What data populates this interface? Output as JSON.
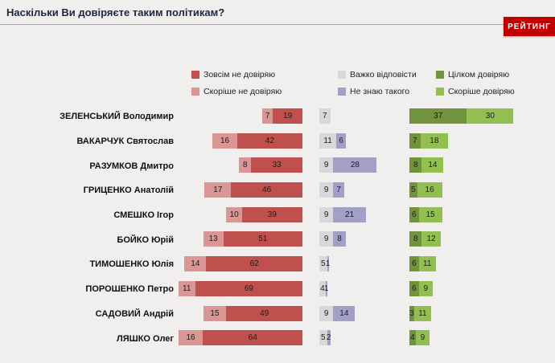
{
  "title": "Наскільки Ви довіряєте таким політикам?",
  "logo_text": "РЕЙТИНГ",
  "colors": {
    "Зовсім не довіряю": "#c0504d",
    "Скоріше не довіряю": "#d99694",
    "Важко відповісти": "#d8d8d8",
    "Не знаю такого": "#a3a0c8",
    "Цілком довіряю": "#73923e",
    "Скоріше довіряю": "#92bf52",
    "logo_red": "#c00000",
    "background": "#f0efee"
  },
  "legend_display_order": [
    "Зовсім не довіряю",
    "Важко відповісти",
    "Цілком довіряю",
    "Скоріше не довіряю",
    "Не знаю такого",
    "Скоріше довіряю"
  ],
  "chart_data": {
    "type": "bar",
    "orientation": "horizontal-diverging-stacked",
    "title": "Наскільки Ви довіряєте таким політикам?",
    "value_unit": "percent",
    "legend_position": "top",
    "grid": false,
    "categories": [
      "ЗЕЛЕНСЬКИЙ Володимир",
      "ВАКАРЧУК Святослав",
      "РАЗУМКОВ Дмитро",
      "ГРИЦЕНКО Анатолій",
      "СМЕШКО Ігор",
      "БОЙКО Юрій",
      "ТИМОШЕНКО Юлія",
      "ПОРОШЕНКО Петро",
      "САДОВИЙ Андрій",
      "ЛЯШКО Олег"
    ],
    "series": [
      {
        "name": "Скоріше не довіряю",
        "values": [
          7,
          16,
          8,
          17,
          10,
          13,
          14,
          11,
          15,
          16
        ]
      },
      {
        "name": "Зовсім не довіряю",
        "values": [
          19,
          42,
          33,
          46,
          39,
          51,
          62,
          69,
          49,
          64
        ]
      },
      {
        "name": "Важко відповісти",
        "values": [
          7,
          11,
          9,
          9,
          9,
          9,
          5,
          4,
          9,
          5
        ]
      },
      {
        "name": "Не знаю такого",
        "values": [
          0,
          6,
          28,
          7,
          21,
          8,
          1,
          1,
          14,
          2
        ]
      },
      {
        "name": "Цілком довіряю",
        "values": [
          37,
          7,
          8,
          5,
          6,
          8,
          6,
          6,
          3,
          4
        ]
      },
      {
        "name": "Скоріше довіряю",
        "values": [
          30,
          18,
          14,
          16,
          15,
          12,
          11,
          9,
          11,
          9
        ]
      }
    ]
  }
}
